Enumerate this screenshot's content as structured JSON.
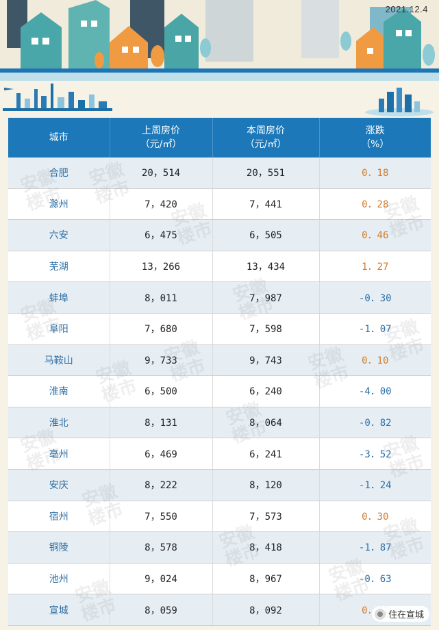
{
  "banner": {
    "date": "2021.12.4"
  },
  "table": {
    "headers": [
      {
        "line1": "城市",
        "line2": ""
      },
      {
        "line1": "上周房价",
        "line2": "（元/㎡）"
      },
      {
        "line1": "本周房价",
        "line2": "（元/㎡）"
      },
      {
        "line1": "涨跌",
        "line2": "（%）"
      }
    ],
    "rows": [
      {
        "city": "合肥",
        "last": "20，514",
        "this": "20，551",
        "change": "0．18",
        "dir": "up"
      },
      {
        "city": "滁州",
        "last": "7，420",
        "this": "7，441",
        "change": "0．28",
        "dir": "up"
      },
      {
        "city": "六安",
        "last": "6，475",
        "this": "6，505",
        "change": "0．46",
        "dir": "up"
      },
      {
        "city": "芜湖",
        "last": "13，266",
        "this": "13，434",
        "change": "1．27",
        "dir": "up"
      },
      {
        "city": "蚌埠",
        "last": "8，011",
        "this": "7，987",
        "change": "-0．30",
        "dir": "down"
      },
      {
        "city": "阜阳",
        "last": "7，680",
        "this": "7，598",
        "change": "-1．07",
        "dir": "down"
      },
      {
        "city": "马鞍山",
        "last": "9，733",
        "this": "9，743",
        "change": "0．10",
        "dir": "up"
      },
      {
        "city": "淮南",
        "last": "6，500",
        "this": "6，240",
        "change": "-4．00",
        "dir": "down"
      },
      {
        "city": "淮北",
        "last": "8，131",
        "this": "8，064",
        "change": "-0．82",
        "dir": "down"
      },
      {
        "city": "亳州",
        "last": "6，469",
        "this": "6，241",
        "change": "-3．52",
        "dir": "down"
      },
      {
        "city": "安庆",
        "last": "8，222",
        "this": "8，120",
        "change": "-1．24",
        "dir": "down"
      },
      {
        "city": "宿州",
        "last": "7，550",
        "this": "7，573",
        "change": "0．30",
        "dir": "up"
      },
      {
        "city": "铜陵",
        "last": "8，578",
        "this": "8，418",
        "change": "-1．87",
        "dir": "down"
      },
      {
        "city": "池州",
        "last": "9，024",
        "this": "8，967",
        "change": "-0．63",
        "dir": "down"
      },
      {
        "city": "宣城",
        "last": "8，059",
        "this": "8，092",
        "change": "0．41",
        "dir": "up"
      }
    ]
  },
  "watermark": {
    "line1": "安徽",
    "line2": "楼市"
  },
  "badge": {
    "label": "住在宣城",
    "icon": "wechat-icon"
  },
  "colors": {
    "header_bg": "#1c78b9",
    "up": "#d37a2a",
    "down": "#2a6ea8",
    "city": "#2c6ea3"
  }
}
